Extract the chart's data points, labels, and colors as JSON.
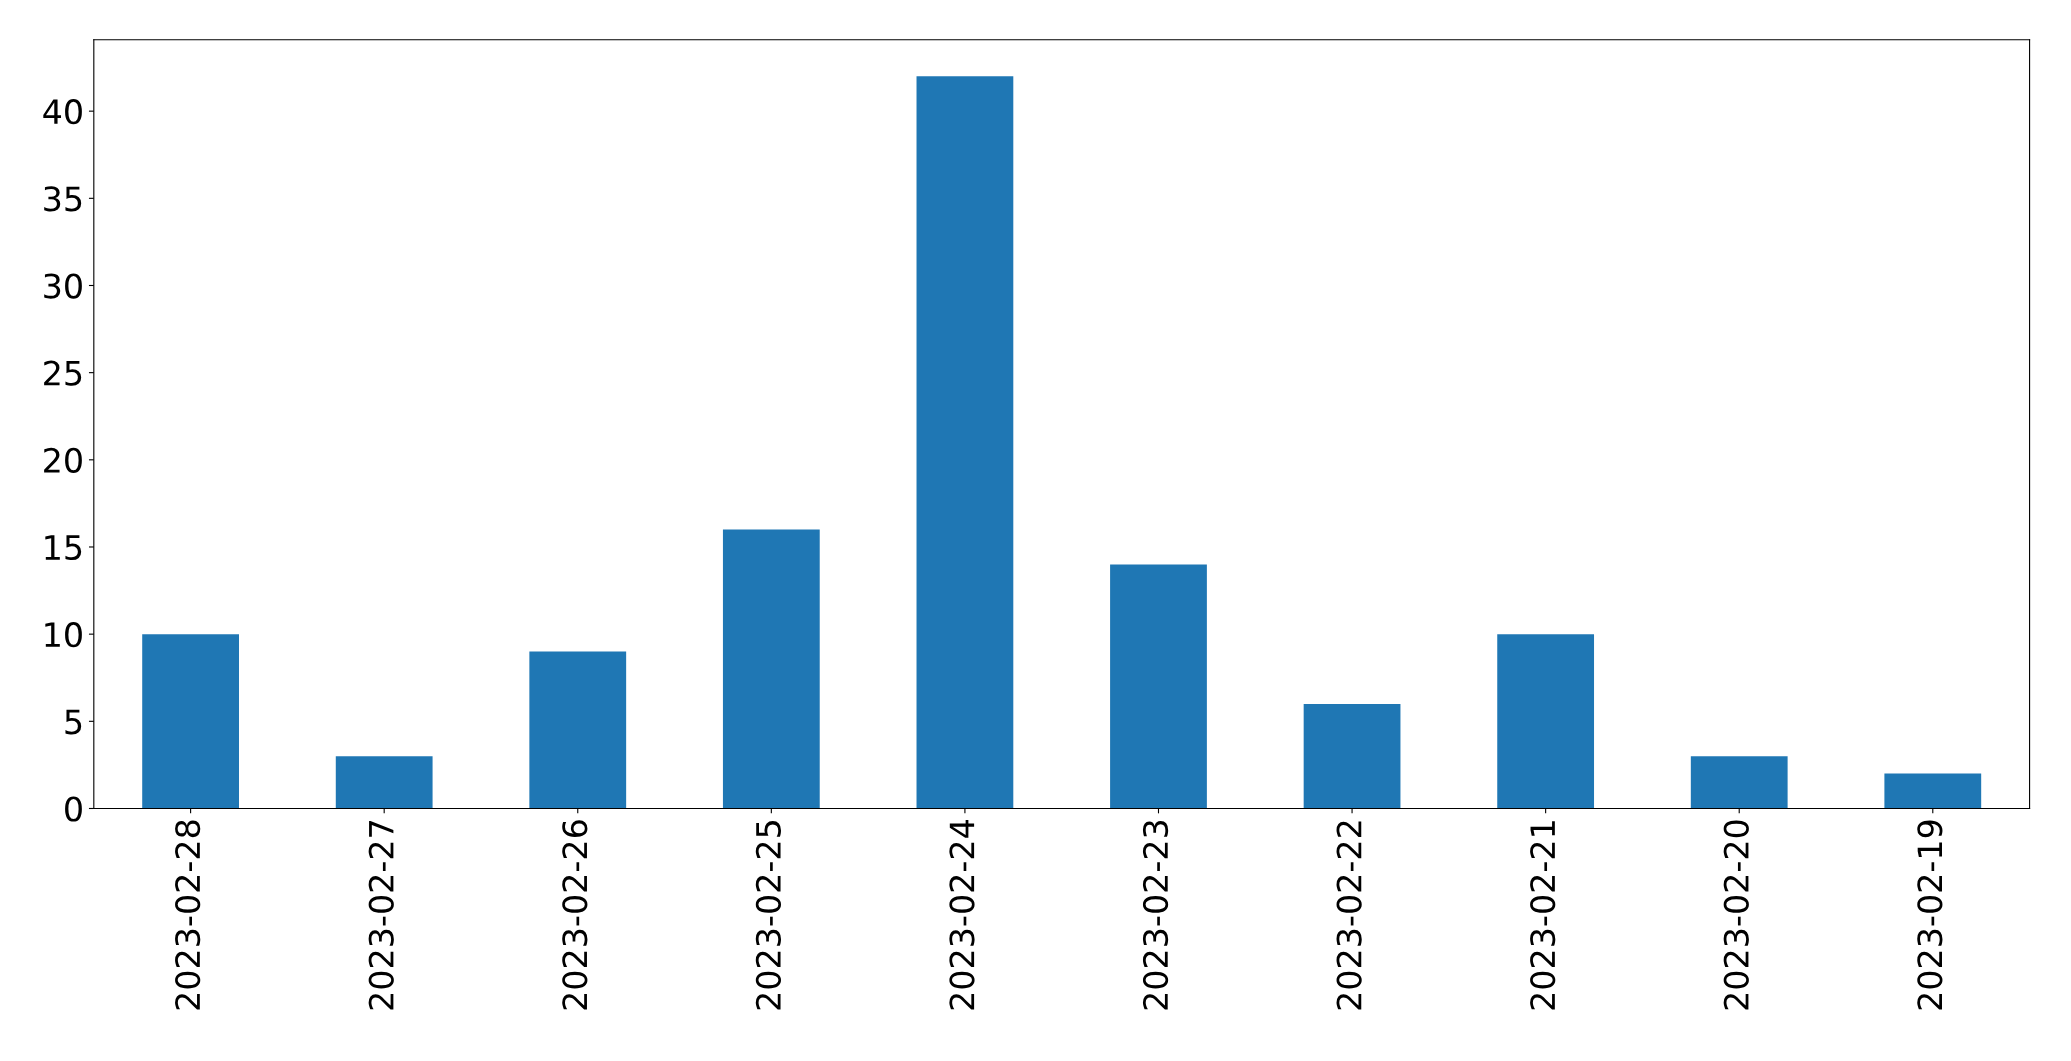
{
  "chart_data": {
    "type": "bar",
    "categories": [
      "2023-02-28",
      "2023-02-27",
      "2023-02-26",
      "2023-02-25",
      "2023-02-24",
      "2023-02-23",
      "2023-02-22",
      "2023-02-21",
      "2023-02-20",
      "2023-02-19"
    ],
    "values": [
      10,
      3,
      9,
      16,
      42,
      14,
      6,
      10,
      3,
      2
    ],
    "color": "#1f77b4",
    "ylim": [
      0,
      44.1
    ],
    "yticks": [
      0,
      5,
      10,
      15,
      20,
      25,
      30,
      35,
      40
    ],
    "grid": false,
    "legend": false
  }
}
